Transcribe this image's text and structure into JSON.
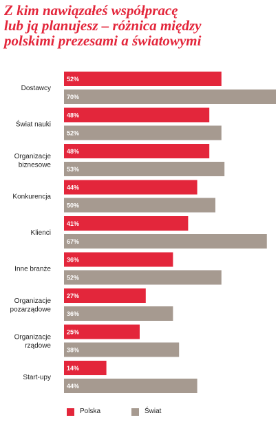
{
  "title_lines": [
    "Z kim nawiązałeś współpracę",
    "lub ją planujesz – różnica między",
    "polskimi prezesami a światowymi"
  ],
  "colors": {
    "polska": "#e3263b",
    "swiat": "#a69a90",
    "title": "#e3263b"
  },
  "chart_data": {
    "type": "bar",
    "orientation": "horizontal",
    "title": "Z kim nawiązałeś współpracę lub ją planujesz – różnica między polskimi prezesami a światowymi",
    "categories": [
      [
        "Dostawcy"
      ],
      [
        "Świat nauki"
      ],
      [
        "Organizacje",
        "biznesowe"
      ],
      [
        "Konkurencja"
      ],
      [
        "Klienci"
      ],
      [
        "Inne branże"
      ],
      [
        "Organizacje",
        "pozarządowe"
      ],
      [
        "Organizacje",
        "rządowe"
      ],
      [
        "Start-upy"
      ]
    ],
    "series": [
      {
        "name": "Polska",
        "color": "#e3263b",
        "values": [
          52,
          48,
          48,
          44,
          41,
          36,
          27,
          25,
          14
        ]
      },
      {
        "name": "Świat",
        "color": "#a69a90",
        "values": [
          70,
          52,
          53,
          50,
          67,
          52,
          36,
          38,
          44
        ]
      }
    ],
    "value_suffix": "%",
    "xlim": [
      0,
      70
    ],
    "grid": false,
    "legend_position": "bottom"
  }
}
